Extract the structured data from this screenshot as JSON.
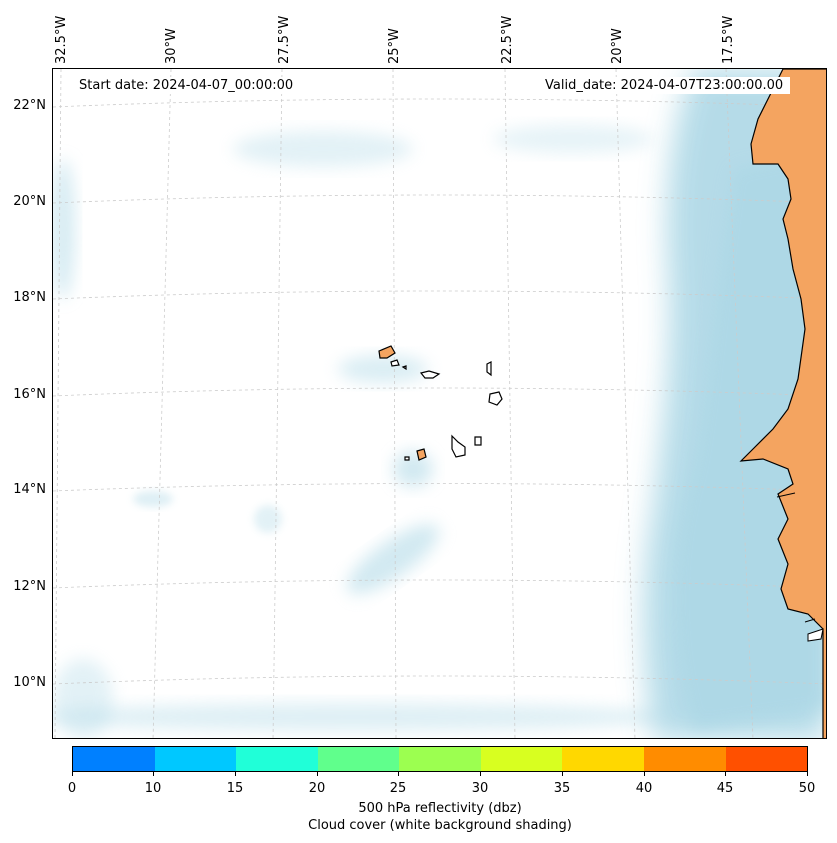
{
  "map": {
    "start_date": "Start date: 2024-04-07_00:00:00",
    "valid_date": "Valid_date: 2024-04-07T23:00:00.00",
    "lon_labels": [
      "32.5°W",
      "30°W",
      "27.5°W",
      "25°W",
      "22.5°W",
      "20°W",
      "17.5°W"
    ],
    "lat_labels": [
      "22°N",
      "20°N",
      "18°N",
      "16°N",
      "14°N",
      "12°N",
      "10°N"
    ],
    "colors": {
      "land": "#f4a460",
      "cloud": "#add8e6",
      "ocean": "#ffffff",
      "grid": "#cccccc"
    }
  },
  "colorbar": {
    "label_line1": "500 hPa reflectivity (dbz)",
    "label_line2": "Cloud cover (white background shading)",
    "ticks": [
      "0",
      "10",
      "15",
      "20",
      "25",
      "30",
      "35",
      "40",
      "45",
      "50"
    ],
    "colors": [
      "#0080ff",
      "#00c8ff",
      "#20ffd8",
      "#60ff8c",
      "#9cff50",
      "#d8ff20",
      "#ffd800",
      "#ff8c00",
      "#ff5000"
    ]
  }
}
